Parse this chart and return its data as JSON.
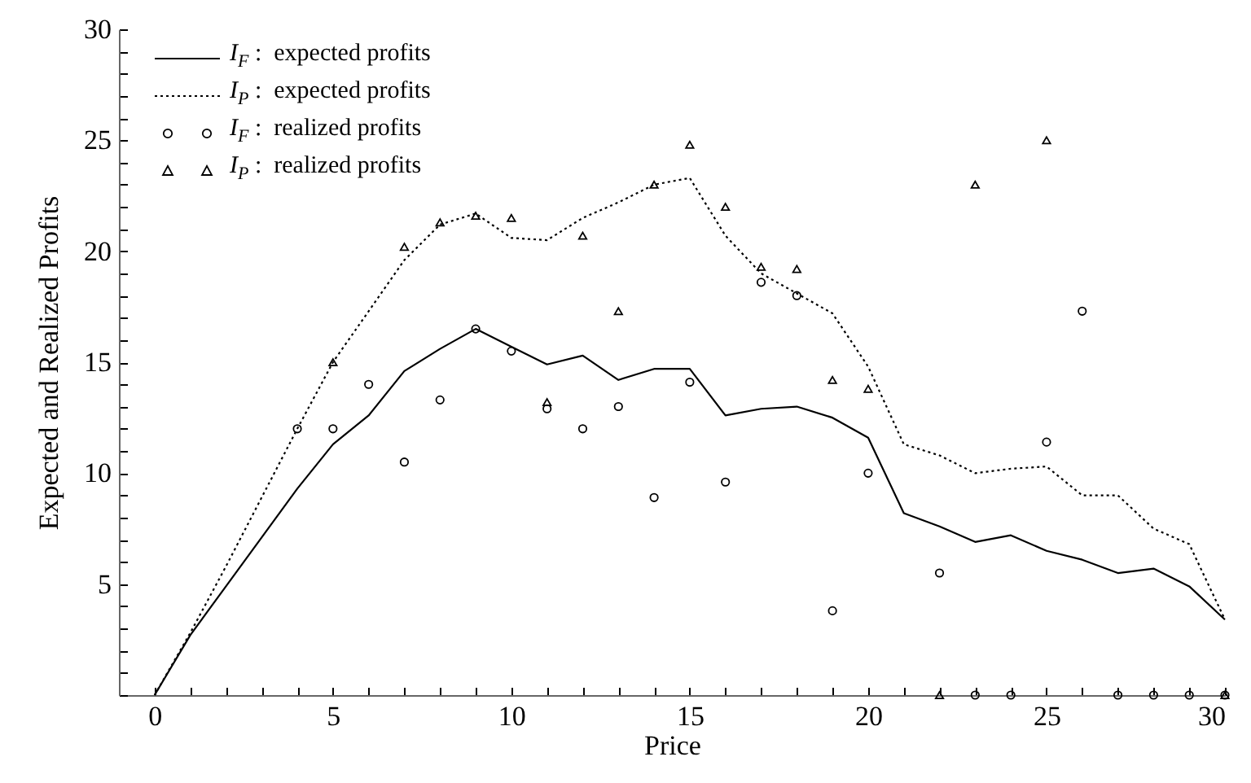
{
  "chart_data": {
    "type": "line",
    "xlabel": "Price",
    "ylabel": "Expected and Realized Profits",
    "xlim": [
      -1,
      30
    ],
    "ylim": [
      0,
      30
    ],
    "xticks": [
      0,
      {
        "value": 1,
        "label": null
      },
      {
        "value": 2,
        "label": null
      },
      {
        "value": 3,
        "label": null
      },
      {
        "value": 4,
        "label": null
      },
      5,
      {
        "value": 6,
        "label": null
      },
      {
        "value": 7,
        "label": null
      },
      {
        "value": 8,
        "label": null
      },
      {
        "value": 9,
        "label": null
      },
      10,
      {
        "value": 11,
        "label": null
      },
      {
        "value": 12,
        "label": null
      },
      {
        "value": 13,
        "label": null
      },
      {
        "value": 14,
        "label": null
      },
      15,
      {
        "value": 16,
        "label": null
      },
      {
        "value": 17,
        "label": null
      },
      {
        "value": 18,
        "label": null
      },
      {
        "value": 19,
        "label": null
      },
      20,
      {
        "value": 21,
        "label": null
      },
      {
        "value": 22,
        "label": null
      },
      {
        "value": 23,
        "label": null
      },
      {
        "value": 24,
        "label": null
      },
      25,
      {
        "value": 26,
        "label": null
      },
      {
        "value": 27,
        "label": null
      },
      {
        "value": 28,
        "label": null
      },
      {
        "value": 29,
        "label": null
      },
      30
    ],
    "yticks": [
      {
        "value": 0,
        "label": null
      },
      {
        "value": 1,
        "label": null
      },
      {
        "value": 2,
        "label": null
      },
      {
        "value": 3,
        "label": null
      },
      {
        "value": 4,
        "label": null
      },
      5,
      {
        "value": 6,
        "label": null
      },
      {
        "value": 7,
        "label": null
      },
      {
        "value": 8,
        "label": null
      },
      {
        "value": 9,
        "label": null
      },
      10,
      {
        "value": 11,
        "label": null
      },
      {
        "value": 12,
        "label": null
      },
      {
        "value": 13,
        "label": null
      },
      {
        "value": 14,
        "label": null
      },
      15,
      {
        "value": 16,
        "label": null
      },
      {
        "value": 17,
        "label": null
      },
      {
        "value": 18,
        "label": null
      },
      {
        "value": 19,
        "label": null
      },
      20,
      {
        "value": 21,
        "label": null
      },
      {
        "value": 22,
        "label": null
      },
      {
        "value": 23,
        "label": null
      },
      {
        "value": 24,
        "label": null
      },
      25,
      {
        "value": 26,
        "label": null
      },
      {
        "value": 27,
        "label": null
      },
      {
        "value": 28,
        "label": null
      },
      {
        "value": 29,
        "label": null
      },
      30
    ],
    "grid": false,
    "legend": "top left",
    "series": [
      {
        "name": "I$_{F}$ :  expected profits",
        "type": "line",
        "line_style": "solid",
        "color": "#000000",
        "x": [
          0,
          1,
          2,
          3,
          4,
          5,
          6,
          7,
          8,
          9,
          10,
          11,
          12,
          13,
          14,
          15,
          16,
          17,
          18,
          19,
          20,
          21,
          22,
          23,
          24,
          25,
          26,
          27,
          28,
          29,
          30
        ],
        "values": [
          0,
          2.7,
          4.9,
          7.1,
          9.3,
          11.3,
          12.6,
          14.6,
          15.6,
          16.5,
          15.7,
          14.9,
          15.3,
          14.2,
          14.7,
          14.7,
          12.6,
          12.9,
          13.0,
          12.5,
          11.6,
          8.2,
          7.6,
          6.9,
          7.2,
          6.5,
          6.1,
          5.5,
          5.7,
          4.9,
          3.4
        ]
      },
      {
        "name": "I$_{P}$ :  expected profits",
        "type": "line",
        "line_style": "dotted",
        "color": "#000000",
        "x": [
          0,
          1,
          2,
          3,
          4,
          5,
          6,
          7,
          8,
          9,
          10,
          11,
          12,
          13,
          14,
          15,
          16,
          17,
          18,
          19,
          20,
          21,
          22,
          23,
          24,
          25,
          26,
          27,
          28,
          29,
          30
        ],
        "values": [
          0,
          2.8,
          5.8,
          8.9,
          12.0,
          15.0,
          17.3,
          19.6,
          21.2,
          21.7,
          20.6,
          20.5,
          21.5,
          22.2,
          23.0,
          23.3,
          20.7,
          19.0,
          18.1,
          17.2,
          14.8,
          11.3,
          10.8,
          10.0,
          10.2,
          10.3,
          9.0,
          9.0,
          7.5,
          6.8,
          3.4
        ]
      },
      {
        "name": "I$_{F}$ :  realized profits",
        "type": "scatter",
        "marker": "circle",
        "color": "#000000",
        "x": [
          4,
          5,
          6,
          7,
          8,
          9,
          10,
          11,
          12,
          13,
          14,
          15,
          16,
          17,
          18,
          19,
          20,
          22,
          23,
          24,
          25,
          26,
          27,
          28,
          29,
          30
        ],
        "values": [
          12.0,
          12.0,
          14.0,
          10.5,
          13.3,
          16.5,
          15.5,
          12.9,
          12.0,
          13.0,
          8.9,
          14.1,
          9.6,
          18.6,
          18.0,
          3.8,
          10.0,
          5.5,
          0,
          0,
          11.4,
          17.3,
          0,
          0,
          0,
          0
        ]
      },
      {
        "name": "I$_{P}$ :  realized profits",
        "type": "scatter",
        "marker": "triangle",
        "color": "#000000",
        "x": [
          5,
          7,
          8,
          9,
          10,
          11,
          12,
          13,
          14,
          15,
          16,
          17,
          18,
          19,
          20,
          22,
          23,
          25,
          30
        ],
        "values": [
          15.0,
          20.2,
          21.3,
          21.6,
          21.5,
          13.2,
          20.7,
          17.3,
          23.0,
          24.8,
          22.0,
          19.3,
          19.2,
          14.2,
          13.8,
          0,
          23.0,
          25.0,
          0
        ]
      }
    ]
  }
}
